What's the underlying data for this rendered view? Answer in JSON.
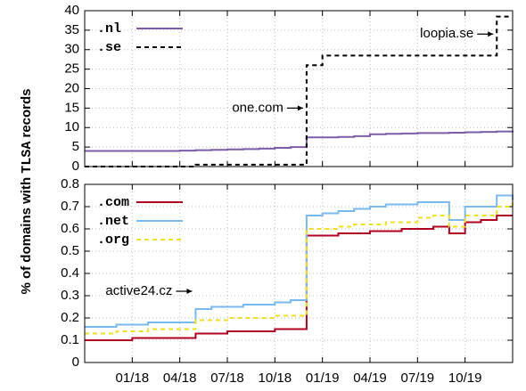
{
  "ylabel": [
    "% of domains with ",
    "TLSA",
    " records"
  ],
  "chart_data": [
    {
      "type": "line",
      "legend": "upper left",
      "grid": true,
      "x": [
        "10/17",
        "11/17",
        "12/17",
        "01/18",
        "02/18",
        "03/18",
        "04/18",
        "05/18",
        "06/18",
        "07/18",
        "08/18",
        "09/18",
        "10/18",
        "11/18",
        "12/18",
        "01/19",
        "02/19",
        "03/19",
        "04/19",
        "05/19",
        "06/19",
        "07/19",
        "08/19",
        "09/19",
        "10/19",
        "11/19",
        "12/19",
        "01/20"
      ],
      "xlim": [
        "10/17",
        "01/20"
      ],
      "ylim": [
        0,
        40
      ],
      "yticks": [
        0,
        5,
        10,
        15,
        20,
        25,
        30,
        35,
        40
      ],
      "series": [
        {
          "name": ".nl",
          "color": "#7b5ea7",
          "style": "solid",
          "values": [
            4,
            4,
            4,
            4,
            4,
            4,
            4.1,
            4.2,
            4.3,
            4.4,
            4.5,
            4.6,
            4.8,
            5,
            7.5,
            7.5,
            7.6,
            7.8,
            8.3,
            8.4,
            8.5,
            8.6,
            8.6,
            8.7,
            8.8,
            8.9,
            9,
            9.2
          ]
        },
        {
          "name": ".se",
          "color": "#000000",
          "style": "dashed",
          "values": [
            0,
            0,
            0,
            0,
            0,
            0,
            0,
            0.5,
            0.5,
            0.5,
            0.5,
            0.5,
            0.5,
            0.5,
            26,
            28.5,
            28.5,
            28.5,
            28.5,
            28.5,
            28.5,
            28.5,
            28.5,
            28.5,
            28.5,
            28.5,
            38.5,
            38.5
          ]
        }
      ],
      "annotations": [
        {
          "text": "one.com",
          "x": "12/18",
          "y": 15
        },
        {
          "text": "loopia.se",
          "x": "12/19",
          "y": 34
        }
      ]
    },
    {
      "type": "line",
      "legend": "upper left",
      "grid": true,
      "x": [
        "10/17",
        "11/17",
        "12/17",
        "01/18",
        "02/18",
        "03/18",
        "04/18",
        "05/18",
        "06/18",
        "07/18",
        "08/18",
        "09/18",
        "10/18",
        "11/18",
        "12/18",
        "01/19",
        "02/19",
        "03/19",
        "04/19",
        "05/19",
        "06/19",
        "07/19",
        "08/19",
        "09/19",
        "10/19",
        "11/19",
        "12/19",
        "01/20"
      ],
      "xlim": [
        "10/17",
        "01/20"
      ],
      "xticks": [
        "01/18",
        "04/18",
        "07/18",
        "10/18",
        "01/19",
        "04/19",
        "07/19",
        "10/19"
      ],
      "ylim": [
        0,
        0.8
      ],
      "yticks": [
        0,
        0.1,
        0.2,
        0.3,
        0.4,
        0.5,
        0.6,
        0.7,
        0.8
      ],
      "series": [
        {
          "name": ".com",
          "color": "#b00020",
          "style": "solid",
          "values": [
            0.1,
            0.1,
            0.1,
            0.11,
            0.11,
            0.11,
            0.11,
            0.13,
            0.13,
            0.14,
            0.14,
            0.14,
            0.15,
            0.15,
            0.57,
            0.57,
            0.58,
            0.58,
            0.59,
            0.59,
            0.6,
            0.6,
            0.61,
            0.58,
            0.63,
            0.64,
            0.66,
            0.66
          ]
        },
        {
          "name": ".net",
          "color": "#7ab8f0",
          "style": "solid",
          "values": [
            0.16,
            0.16,
            0.17,
            0.17,
            0.18,
            0.18,
            0.18,
            0.24,
            0.25,
            0.25,
            0.26,
            0.26,
            0.27,
            0.28,
            0.66,
            0.67,
            0.68,
            0.69,
            0.7,
            0.71,
            0.71,
            0.72,
            0.72,
            0.64,
            0.7,
            0.7,
            0.75,
            0.73
          ]
        },
        {
          "name": ".org",
          "color": "#f0e020",
          "style": "dashed",
          "values": [
            0.13,
            0.13,
            0.14,
            0.14,
            0.15,
            0.15,
            0.15,
            0.19,
            0.19,
            0.2,
            0.2,
            0.2,
            0.21,
            0.21,
            0.6,
            0.6,
            0.61,
            0.62,
            0.62,
            0.63,
            0.63,
            0.65,
            0.66,
            0.61,
            0.66,
            0.66,
            0.7,
            0.72
          ]
        }
      ],
      "annotations": [
        {
          "text": "active24.cz",
          "x": "05/18",
          "y": 0.32
        }
      ]
    }
  ]
}
